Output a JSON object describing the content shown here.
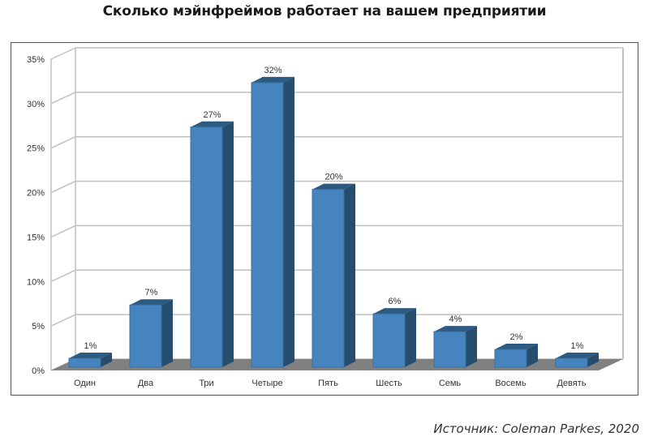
{
  "title": "Сколько мэйнфреймов работает на вашем предприятии",
  "source": "Источник: Coleman Parkes, 2020",
  "colors": {
    "bar_front": "#4684bf",
    "bar_side": "#274d6e",
    "bar_top": "#2d5a80",
    "floor": "#808080",
    "grid": "#c0c0c0",
    "frame": "#555555"
  },
  "chart_data": {
    "type": "bar",
    "style": "3d-column",
    "title": "Сколько мэйнфреймов работает на вашем предприятии",
    "categories": [
      "Один",
      "Два",
      "Три",
      "Четыре",
      "Пять",
      "Шесть",
      "Семь",
      "Восемь",
      "Девять"
    ],
    "values": [
      1,
      7,
      27,
      32,
      20,
      6,
      4,
      2,
      1
    ],
    "data_labels": [
      "1%",
      "7%",
      "27%",
      "32%",
      "20%",
      "6%",
      "4%",
      "2%",
      "1%"
    ],
    "xlabel": "",
    "ylabel": "",
    "ylim": [
      0,
      35
    ],
    "yticks": [
      "0%",
      "5%",
      "10%",
      "15%",
      "20%",
      "25%",
      "30%",
      "35%"
    ],
    "grid": true,
    "legend": null
  }
}
